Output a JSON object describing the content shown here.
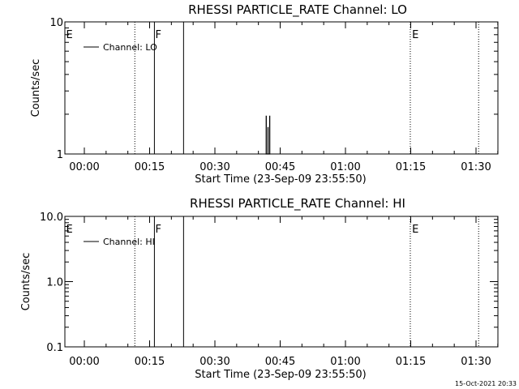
{
  "chart_data": [
    {
      "type": "line",
      "title": "RHESSI PARTICLE_RATE Channel: LO",
      "xlabel": "Start Time (23-Sep-09 23:55:50)",
      "ylabel": "Counts/sec",
      "yscale": "log",
      "ylim": [
        1,
        10
      ],
      "y_tick_labels": [
        {
          "value": 1,
          "label": "1"
        },
        {
          "value": 10,
          "label": "10"
        }
      ],
      "xlim": [
        -4.5,
        36.4
      ],
      "x_tick_labels": [
        {
          "value": 0,
          "label": "00:00"
        },
        {
          "value": 15,
          "label": "00:15"
        },
        {
          "value": 30,
          "label": "00:30"
        },
        {
          "value": 45,
          "label": "00:45"
        },
        {
          "value": 60,
          "label": "01:00"
        },
        {
          "value": 75,
          "label": "01:15"
        },
        {
          "value": 90,
          "label": "01:30"
        }
      ],
      "legend": {
        "position": "top-left",
        "entries": [
          "Channel: LO"
        ]
      },
      "series": [
        {
          "name": "Channel: LO",
          "x": [
            41.8,
            41.8,
            41.8,
            42.2,
            42.2,
            42.2,
            42.6,
            42.6,
            42.6
          ],
          "y": [
            1,
            1.95,
            1,
            1,
            1.6,
            1,
            1,
            1.95,
            1
          ]
        }
      ],
      "markers": [
        {
          "x": 11.6,
          "style": "dotted",
          "label": ""
        },
        {
          "x": 16.1,
          "style": "solid",
          "label": ""
        },
        {
          "x": 22.8,
          "style": "solid",
          "label": ""
        },
        {
          "x": 74.9,
          "style": "dotted",
          "label": ""
        },
        {
          "x": 90.6,
          "style": "dotted",
          "label": ""
        }
      ],
      "flag_labels": [
        {
          "x": -4.2,
          "label": "E"
        },
        {
          "x": 16.3,
          "label": "F"
        },
        {
          "x": 75.3,
          "label": "E"
        }
      ]
    },
    {
      "type": "line",
      "title": "RHESSI PARTICLE_RATE Channel: HI",
      "xlabel": "Start Time (23-Sep-09 23:55:50)",
      "ylabel": "Counts/sec",
      "yscale": "log",
      "ylim": [
        0.1,
        10
      ],
      "y_tick_labels": [
        {
          "value": 0.1,
          "label": "0.1"
        },
        {
          "value": 1,
          "label": "1.0"
        },
        {
          "value": 10,
          "label": "10.0"
        }
      ],
      "xlim": [
        -4.5,
        36.4
      ],
      "x_tick_labels": [
        {
          "value": 0,
          "label": "00:00"
        },
        {
          "value": 15,
          "label": "00:15"
        },
        {
          "value": 30,
          "label": "00:30"
        },
        {
          "value": 45,
          "label": "00:45"
        },
        {
          "value": 60,
          "label": "01:00"
        },
        {
          "value": 75,
          "label": "01:15"
        },
        {
          "value": 90,
          "label": "01:30"
        }
      ],
      "legend": {
        "position": "top-left",
        "entries": [
          "Channel: HI"
        ]
      },
      "series": [
        {
          "name": "Channel: HI",
          "x": [],
          "y": []
        }
      ],
      "markers": [
        {
          "x": 11.6,
          "style": "dotted",
          "label": ""
        },
        {
          "x": 16.1,
          "style": "solid",
          "label": ""
        },
        {
          "x": 22.8,
          "style": "solid",
          "label": ""
        },
        {
          "x": 74.9,
          "style": "dotted",
          "label": ""
        },
        {
          "x": 90.6,
          "style": "dotted",
          "label": ""
        }
      ],
      "flag_labels": [
        {
          "x": -4.2,
          "label": "E"
        },
        {
          "x": 16.3,
          "label": "F"
        },
        {
          "x": 75.3,
          "label": "E"
        }
      ]
    }
  ],
  "footer": {
    "timestamp": "15-Oct-2021 20:33"
  }
}
